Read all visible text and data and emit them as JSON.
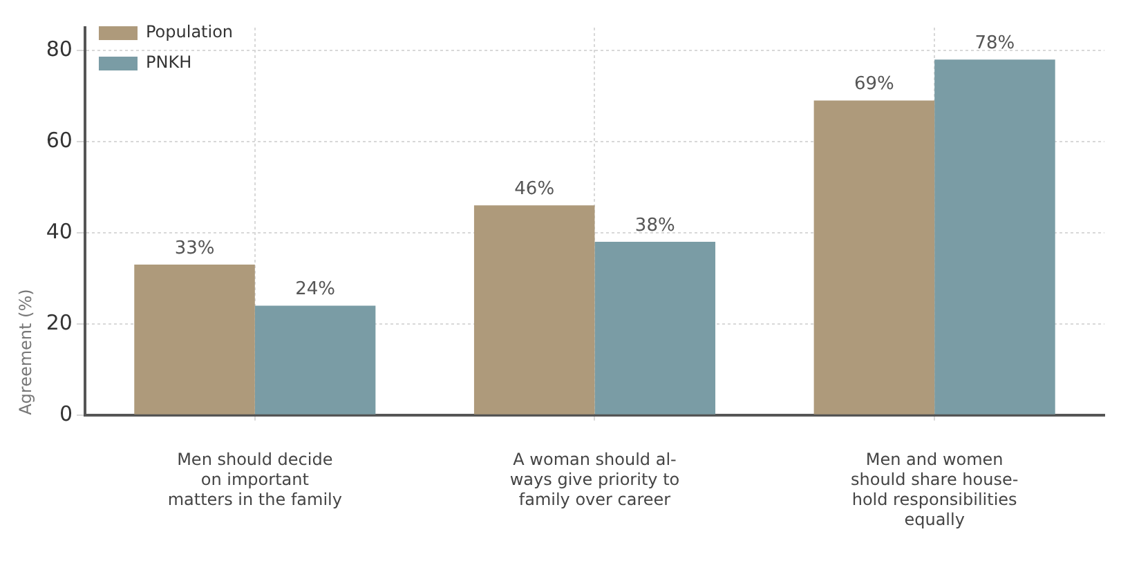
{
  "chart_data": {
    "type": "bar",
    "ylabel": "Agreement (%)",
    "categories": [
      "Men should decide\non important\nmatters in the family",
      "A woman should al-\nways give priority to\nfamily over career",
      "Men and women\nshould share house-\nhold responsibilities\nequally"
    ],
    "series": [
      {
        "name": "Population",
        "color": "#ae9a7b",
        "values": [
          33,
          46,
          69
        ],
        "value_labels": [
          "33%",
          "46%",
          "69%"
        ]
      },
      {
        "name": "PNKH",
        "color": "#7a9ca5",
        "values": [
          24,
          38,
          78
        ],
        "value_labels": [
          "24%",
          "38%",
          "78%"
        ]
      }
    ],
    "ylim": [
      0,
      85
    ],
    "yticks": [
      0,
      20,
      40,
      60,
      80
    ],
    "grid": true,
    "legend": "top left"
  }
}
